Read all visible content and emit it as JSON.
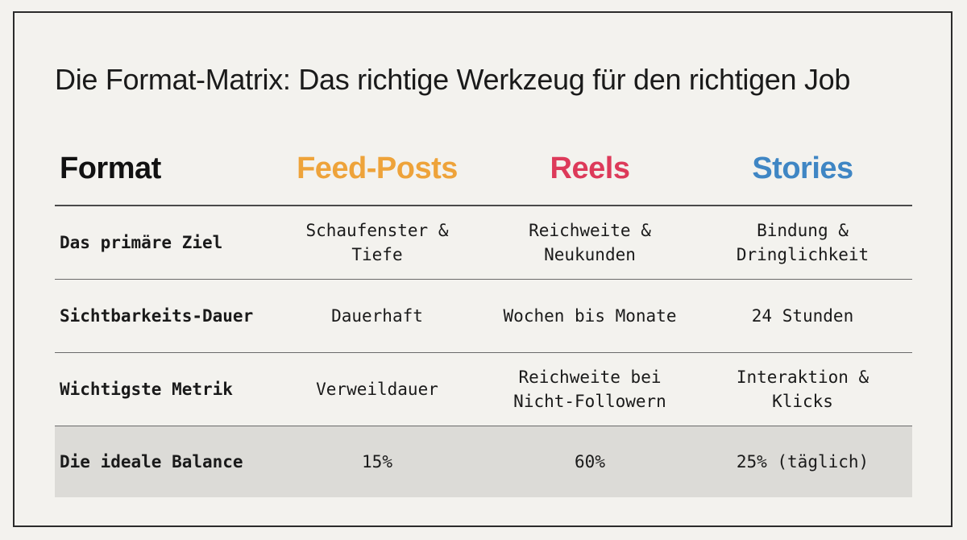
{
  "title": "Die Format-Matrix: Das richtige Werkzeug für den richtigen Job",
  "header": {
    "label": "Format",
    "columns": [
      {
        "name": "Feed-Posts",
        "color": "#eea33a"
      },
      {
        "name": "Reels",
        "color": "#dd3a5a"
      },
      {
        "name": "Stories",
        "color": "#3f86c4"
      }
    ]
  },
  "rows": [
    {
      "label": "Das primäre Ziel",
      "values": [
        "Schaufenster &\nTiefe",
        "Reichweite &\nNeukunden",
        "Bindung &\nDringlichkeit"
      ]
    },
    {
      "label": "Sichtbarkeits-Dauer",
      "values": [
        "Dauerhaft",
        "Wochen bis Monate",
        "24 Stunden"
      ]
    },
    {
      "label": "Wichtigste Metrik",
      "values": [
        "Verweildauer",
        "Reichweite bei\nNicht-Followern",
        "Interaktion &\nKlicks"
      ]
    },
    {
      "label": "Die ideale Balance",
      "values": [
        "15%",
        "60%",
        "25% (täglich)"
      ]
    }
  ],
  "colors": {
    "background": "#f3f2ee",
    "highlight_row": "#dcdbd7"
  }
}
